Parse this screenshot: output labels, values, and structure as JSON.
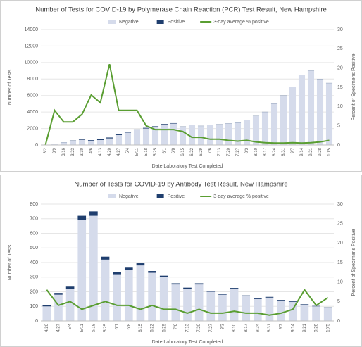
{
  "chart_data": [
    {
      "type": "bar",
      "stacked": true,
      "title": "Number of Tests for COVID-19 by Polymerase Chain Reaction (PCR) Test Result, New Hampshire",
      "x_label": "Date Laboratory Test Completed",
      "y_label": "Number of Tests",
      "y2_label": "Percent of Specimens Positive",
      "categories": [
        "3/2",
        "3/9",
        "3/16",
        "3/23",
        "3/30",
        "4/6",
        "4/13",
        "4/20",
        "4/27",
        "5/4",
        "5/11",
        "5/18",
        "5/25",
        "6/1",
        "6/8",
        "6/15",
        "6/22",
        "6/29",
        "7/6",
        "7/13",
        "7/20",
        "7/27",
        "8/3",
        "8/10",
        "8/17",
        "8/24",
        "8/31",
        "9/7",
        "9/14",
        "9/21",
        "9/28",
        "10/5"
      ],
      "series": [
        {
          "name": "Negative",
          "color": "#d5dbeb",
          "values": [
            20,
            100,
            300,
            500,
            600,
            500,
            600,
            800,
            1200,
            1500,
            1800,
            2000,
            2200,
            2500,
            2600,
            2200,
            2400,
            2300,
            2400,
            2500,
            2600,
            2700,
            3000,
            3500,
            4000,
            5000,
            6000,
            7000,
            8500,
            9000,
            8000,
            7500
          ]
        },
        {
          "name": "Positive",
          "color": "#1f3e6e",
          "values": [
            0,
            5,
            20,
            40,
            60,
            80,
            90,
            100,
            110,
            100,
            90,
            80,
            70,
            60,
            50,
            40,
            30,
            20,
            20,
            20,
            20,
            20,
            20,
            20,
            20,
            20,
            20,
            20,
            20,
            20,
            20,
            20
          ]
        },
        {
          "name": "3-day average % positive",
          "color": "#5a9e32",
          "axis": "y2",
          "values": [
            0,
            9,
            6,
            6,
            8,
            13,
            11,
            21,
            9,
            9,
            9,
            5,
            4,
            4,
            4,
            3.5,
            2,
            2,
            1.5,
            1.5,
            1.2,
            1,
            1.2,
            0.8,
            0.6,
            0.5,
            0.5,
            0.6,
            0.5,
            0.6,
            0.8,
            1.2
          ]
        }
      ],
      "ylim": [
        0,
        14000
      ],
      "yticks": [
        0,
        2000,
        4000,
        6000,
        8000,
        10000,
        12000,
        14000
      ],
      "y2lim": [
        0,
        30
      ],
      "y2ticks": [
        0,
        5,
        10,
        15,
        20,
        25,
        30
      ],
      "legend": "top"
    },
    {
      "type": "bar",
      "stacked": true,
      "title": "Number of Tests for COVID-19 by Antibody Test Result, New Hampshire",
      "x_label": "Date Laboratory Test Completed",
      "y_label": "Number of Tests",
      "y2_label": "Percent of Specimens Positive",
      "categories": [
        "4/20",
        "4/27",
        "5/4",
        "5/11",
        "5/18",
        "5/25",
        "6/1",
        "6/8",
        "6/15",
        "6/22",
        "6/29",
        "7/6",
        "7/13",
        "7/20",
        "7/27",
        "8/3",
        "8/10",
        "8/17",
        "8/24",
        "8/31",
        "9/7",
        "9/14",
        "9/21",
        "9/28",
        "10/5"
      ],
      "series": [
        {
          "name": "Negative",
          "color": "#d5dbeb",
          "values": [
            100,
            180,
            220,
            690,
            720,
            420,
            320,
            350,
            380,
            330,
            300,
            250,
            220,
            250,
            200,
            180,
            220,
            170,
            150,
            160,
            140,
            130,
            110,
            100,
            90
          ]
        },
        {
          "name": "Positive",
          "color": "#1f3e6e",
          "values": [
            10,
            12,
            15,
            30,
            30,
            20,
            15,
            15,
            15,
            12,
            10,
            8,
            8,
            8,
            6,
            6,
            6,
            5,
            5,
            5,
            4,
            4,
            4,
            3,
            3
          ]
        },
        {
          "name": "3-day average % positive",
          "color": "#5a9e32",
          "axis": "y2",
          "values": [
            8,
            4,
            5,
            3,
            4,
            5,
            4,
            4,
            3,
            4,
            3,
            3,
            2,
            3,
            2,
            2,
            2.5,
            2,
            2,
            1.5,
            2,
            3,
            8,
            4,
            6
          ]
        }
      ],
      "ylim": [
        0,
        800
      ],
      "yticks": [
        0,
        100,
        200,
        300,
        400,
        500,
        600,
        700,
        800
      ],
      "y2lim": [
        0,
        30
      ],
      "y2ticks": [
        0,
        5,
        10,
        15,
        20,
        25,
        30
      ],
      "legend": "top"
    }
  ]
}
